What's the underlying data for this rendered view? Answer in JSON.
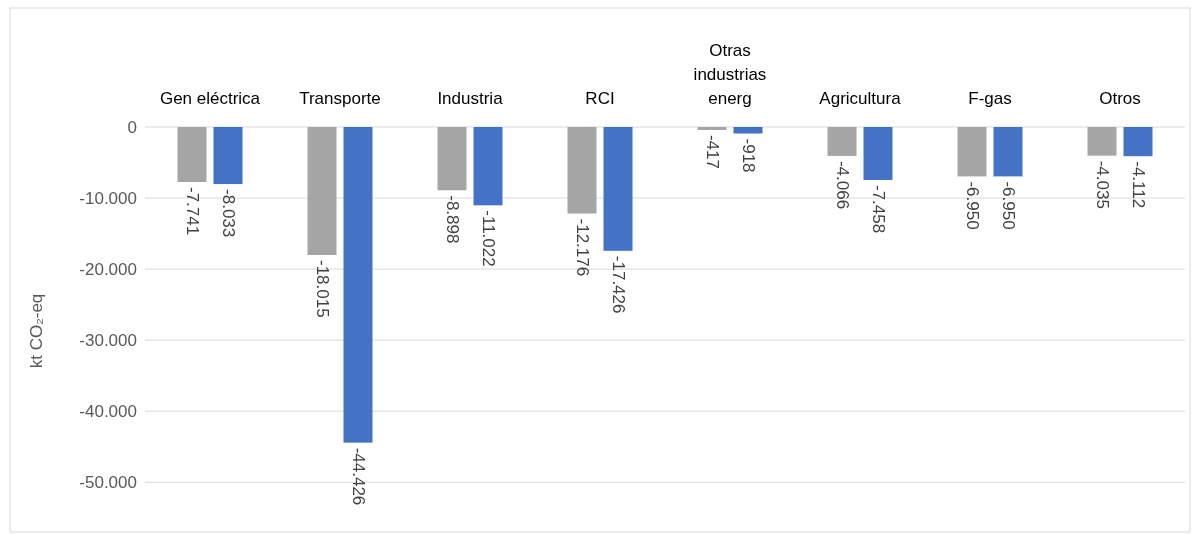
{
  "chart_data": {
    "type": "bar",
    "ylabel": "kt CO₂-eq",
    "categories": [
      "Gen eléctrica",
      "Transporte",
      "Industria",
      "RCI",
      "Otras industrias energ",
      "Agricultura",
      "F-gas",
      "Otros"
    ],
    "series": [
      {
        "color": "#a5a5a5",
        "values": [
          -7741,
          -18015,
          -8898,
          -12176,
          -417,
          -4066,
          -6950,
          -4035
        ],
        "value_labels": [
          "-7.741",
          "-18.015",
          "-8.898",
          "-12.176",
          "-417",
          "-4.066",
          "-6.950",
          "-4.035"
        ]
      },
      {
        "color": "#4472c4",
        "values": [
          -8033,
          -44426,
          -11022,
          -17426,
          -918,
          -7458,
          -6950,
          -4112
        ],
        "value_labels": [
          "-8.033",
          "-44.426",
          "-11.022",
          "-17.426",
          "-918",
          "-7.458",
          "-6.950",
          "-4.112"
        ]
      }
    ],
    "ylim": [
      -57000,
      0
    ],
    "yticks": [
      {
        "value": 0,
        "label": "0"
      },
      {
        "value": -10000,
        "label": "-10.000"
      },
      {
        "value": -20000,
        "label": "-20.000"
      },
      {
        "value": -30000,
        "label": "-30.000"
      },
      {
        "value": -40000,
        "label": "-40.000"
      },
      {
        "value": -50000,
        "label": "-50.000"
      }
    ],
    "grid": "y"
  }
}
